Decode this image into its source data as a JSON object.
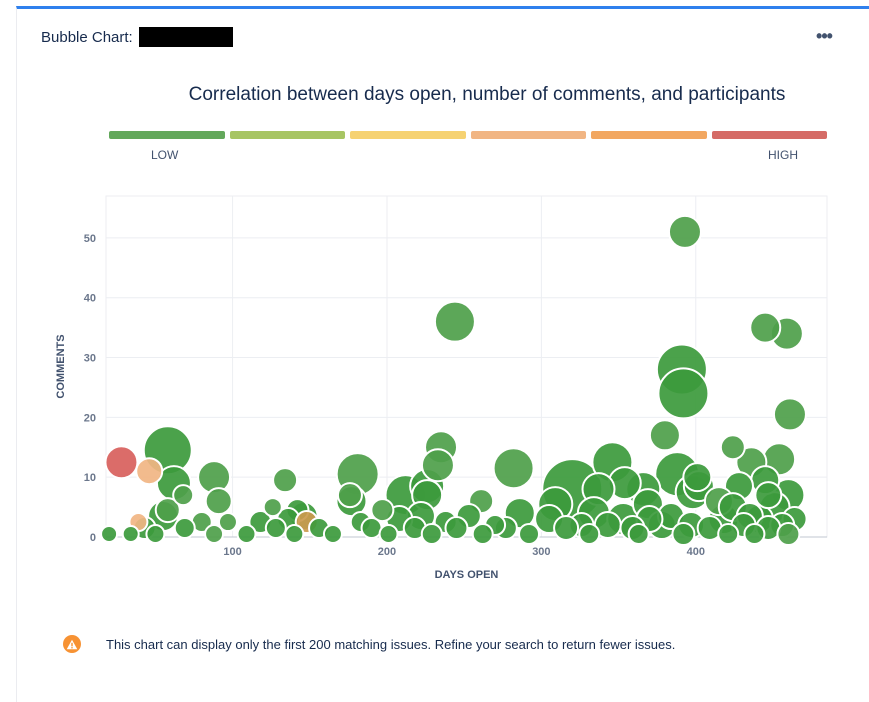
{
  "header": {
    "label": "Bubble Chart:"
  },
  "menu": {
    "icon": "more-horizontal-icon",
    "glyph": "•••"
  },
  "chart_data": {
    "type": "scatter",
    "title": "Correlation between days open, number of comments, and participants",
    "xlabel": "DAYS OPEN",
    "ylabel": "COMMENTS",
    "xlim": [
      18,
      485
    ],
    "ylim": [
      0,
      57
    ],
    "xticks": [
      100,
      200,
      300,
      400
    ],
    "yticks": [
      0,
      10,
      20,
      30,
      40,
      50
    ],
    "grid": true,
    "legend": {
      "placement": "top",
      "low_label": "LOW",
      "high_label": "HIGH",
      "colors": [
        "#63a85b",
        "#a7c563",
        "#f6d272",
        "#f1b583",
        "#f2a760",
        "#d56b66"
      ]
    },
    "size_encodes": "participants",
    "points": [
      {
        "x": 393,
        "y": 51,
        "s": 16,
        "c": "#4ea04a"
      },
      {
        "x": 244,
        "y": 36,
        "s": 20,
        "c": "#4ea04a"
      },
      {
        "x": 445,
        "y": 35,
        "s": 15,
        "c": "#4ea04a"
      },
      {
        "x": 459,
        "y": 34,
        "s": 16,
        "c": "#4ea04a"
      },
      {
        "x": 391,
        "y": 28,
        "s": 25,
        "c": "#3c9a3c"
      },
      {
        "x": 392,
        "y": 24,
        "s": 25,
        "c": "#3c9a3c"
      },
      {
        "x": 461,
        "y": 20.5,
        "s": 16,
        "c": "#4ea04a"
      },
      {
        "x": 380,
        "y": 17,
        "s": 15,
        "c": "#4ea04a"
      },
      {
        "x": 424,
        "y": 15,
        "s": 12,
        "c": "#4ea04a"
      },
      {
        "x": 235,
        "y": 15,
        "s": 16,
        "c": "#4ea04a"
      },
      {
        "x": 58,
        "y": 14.5,
        "s": 24,
        "c": "#3c9a3c"
      },
      {
        "x": 454,
        "y": 13,
        "s": 16,
        "c": "#4ea04a"
      },
      {
        "x": 28,
        "y": 12.5,
        "s": 16,
        "c": "#d8605c"
      },
      {
        "x": 346,
        "y": 12.5,
        "s": 20,
        "c": "#3c9a3c"
      },
      {
        "x": 233,
        "y": 12,
        "s": 16,
        "c": "#4ea04a"
      },
      {
        "x": 436,
        "y": 12.5,
        "s": 15,
        "c": "#4ea04a"
      },
      {
        "x": 282,
        "y": 11.5,
        "s": 20,
        "c": "#4ea04a"
      },
      {
        "x": 46,
        "y": 11,
        "s": 13,
        "c": "#f1b583"
      },
      {
        "x": 181,
        "y": 10.5,
        "s": 21,
        "c": "#4ea04a"
      },
      {
        "x": 388,
        "y": 10.5,
        "s": 22,
        "c": "#3c9a3c"
      },
      {
        "x": 401,
        "y": 10,
        "s": 14,
        "c": "#3c9a3c"
      },
      {
        "x": 88,
        "y": 10,
        "s": 16,
        "c": "#4ea04a"
      },
      {
        "x": 134,
        "y": 9.5,
        "s": 12,
        "c": "#4ea04a"
      },
      {
        "x": 445,
        "y": 9.5,
        "s": 14,
        "c": "#3c9a3c"
      },
      {
        "x": 62,
        "y": 9,
        "s": 17,
        "c": "#3c9a3c"
      },
      {
        "x": 354,
        "y": 9,
        "s": 16,
        "c": "#3c9a3c"
      },
      {
        "x": 402,
        "y": 8.5,
        "s": 15,
        "c": "#3c9a3c"
      },
      {
        "x": 428,
        "y": 8.5,
        "s": 14,
        "c": "#3c9a3c"
      },
      {
        "x": 226,
        "y": 8.5,
        "s": 17,
        "c": "#3c9a3c"
      },
      {
        "x": 320,
        "y": 8,
        "s": 30,
        "c": "#3c9a3c"
      },
      {
        "x": 337,
        "y": 8,
        "s": 16,
        "c": "#3c9a3c"
      },
      {
        "x": 366,
        "y": 8,
        "s": 17,
        "c": "#3c9a3c"
      },
      {
        "x": 398,
        "y": 7.5,
        "s": 17,
        "c": "#3c9a3c"
      },
      {
        "x": 460,
        "y": 7,
        "s": 16,
        "c": "#3c9a3c"
      },
      {
        "x": 447,
        "y": 7,
        "s": 13,
        "c": "#3c9a3c"
      },
      {
        "x": 212,
        "y": 7,
        "s": 20,
        "c": "#3c9a3c"
      },
      {
        "x": 226,
        "y": 7,
        "s": 15,
        "c": "#3c9a3c"
      },
      {
        "x": 176,
        "y": 7,
        "s": 12,
        "c": "#4ea04a"
      },
      {
        "x": 68,
        "y": 7,
        "s": 10,
        "c": "#4ea04a"
      },
      {
        "x": 261,
        "y": 6,
        "s": 12,
        "c": "#4ea04a"
      },
      {
        "x": 91,
        "y": 6,
        "s": 13,
        "c": "#4ea04a"
      },
      {
        "x": 415,
        "y": 6,
        "s": 14,
        "c": "#4ea04a"
      },
      {
        "x": 177,
        "y": 6,
        "s": 15,
        "c": "#3c9a3c"
      },
      {
        "x": 309,
        "y": 5.5,
        "s": 17,
        "c": "#3c9a3c"
      },
      {
        "x": 369,
        "y": 5.5,
        "s": 15,
        "c": "#3c9a3c"
      },
      {
        "x": 424,
        "y": 5,
        "s": 14,
        "c": "#3c9a3c"
      },
      {
        "x": 451,
        "y": 5,
        "s": 15,
        "c": "#3c9a3c"
      },
      {
        "x": 126,
        "y": 5,
        "s": 9,
        "c": "#4ea04a"
      },
      {
        "x": 58,
        "y": 4.5,
        "s": 12,
        "c": "#4ea04a"
      },
      {
        "x": 142,
        "y": 4.5,
        "s": 11,
        "c": "#3c9a3c"
      },
      {
        "x": 197,
        "y": 4.5,
        "s": 11,
        "c": "#4ea04a"
      },
      {
        "x": 286,
        "y": 4,
        "s": 15,
        "c": "#3c9a3c"
      },
      {
        "x": 334,
        "y": 4,
        "s": 16,
        "c": "#3c9a3c"
      },
      {
        "x": 435,
        "y": 3.5,
        "s": 13,
        "c": "#3c9a3c"
      },
      {
        "x": 55,
        "y": 3.5,
        "s": 15,
        "c": "#3c9a3c"
      },
      {
        "x": 146,
        "y": 3.5,
        "s": 14,
        "c": "#3c9a3c"
      },
      {
        "x": 222,
        "y": 3.5,
        "s": 14,
        "c": "#3c9a3c"
      },
      {
        "x": 253,
        "y": 3.5,
        "s": 12,
        "c": "#3c9a3c"
      },
      {
        "x": 384,
        "y": 3.5,
        "s": 13,
        "c": "#3c9a3c"
      },
      {
        "x": 136,
        "y": 3,
        "s": 11,
        "c": "#3c9a3c"
      },
      {
        "x": 208,
        "y": 3,
        "s": 13,
        "c": "#3c9a3c"
      },
      {
        "x": 305,
        "y": 3,
        "s": 14,
        "c": "#3c9a3c"
      },
      {
        "x": 353,
        "y": 3,
        "s": 16,
        "c": "#3c9a3c"
      },
      {
        "x": 370,
        "y": 3,
        "s": 13,
        "c": "#3c9a3c"
      },
      {
        "x": 418,
        "y": 3,
        "s": 15,
        "c": "#3c9a3c"
      },
      {
        "x": 441,
        "y": 3,
        "s": 14,
        "c": "#3c9a3c"
      },
      {
        "x": 464,
        "y": 3,
        "s": 12,
        "c": "#3c9a3c"
      },
      {
        "x": 148,
        "y": 2.5,
        "s": 11,
        "c": "#cb9a4e"
      },
      {
        "x": 80,
        "y": 2.5,
        "s": 10,
        "c": "#4ea04a"
      },
      {
        "x": 97,
        "y": 2.5,
        "s": 9,
        "c": "#4ea04a"
      },
      {
        "x": 39,
        "y": 2.5,
        "s": 9,
        "c": "#f1b583"
      },
      {
        "x": 118,
        "y": 2.5,
        "s": 11,
        "c": "#3c9a3c"
      },
      {
        "x": 183,
        "y": 2.5,
        "s": 10,
        "c": "#3c9a3c"
      },
      {
        "x": 238,
        "y": 2.5,
        "s": 11,
        "c": "#3c9a3c"
      },
      {
        "x": 270,
        "y": 2,
        "s": 10,
        "c": "#3c9a3c"
      },
      {
        "x": 326,
        "y": 2,
        "s": 12,
        "c": "#3c9a3c"
      },
      {
        "x": 343,
        "y": 2,
        "s": 13,
        "c": "#3c9a3c"
      },
      {
        "x": 378,
        "y": 2,
        "s": 14,
        "c": "#3c9a3c"
      },
      {
        "x": 397,
        "y": 2,
        "s": 13,
        "c": "#3c9a3c"
      },
      {
        "x": 431,
        "y": 2,
        "s": 12,
        "c": "#3c9a3c"
      },
      {
        "x": 456,
        "y": 2,
        "s": 12,
        "c": "#3c9a3c"
      },
      {
        "x": 43,
        "y": 1.5,
        "s": 11,
        "c": "#3c9a3c"
      },
      {
        "x": 69,
        "y": 1.5,
        "s": 10,
        "c": "#3c9a3c"
      },
      {
        "x": 128,
        "y": 1.5,
        "s": 10,
        "c": "#3c9a3c"
      },
      {
        "x": 156,
        "y": 1.5,
        "s": 10,
        "c": "#3c9a3c"
      },
      {
        "x": 190,
        "y": 1.5,
        "s": 10,
        "c": "#3c9a3c"
      },
      {
        "x": 218,
        "y": 1.5,
        "s": 11,
        "c": "#3c9a3c"
      },
      {
        "x": 245,
        "y": 1.5,
        "s": 11,
        "c": "#3c9a3c"
      },
      {
        "x": 277,
        "y": 1.5,
        "s": 11,
        "c": "#3c9a3c"
      },
      {
        "x": 316,
        "y": 1.5,
        "s": 12,
        "c": "#3c9a3c"
      },
      {
        "x": 359,
        "y": 1.5,
        "s": 12,
        "c": "#3c9a3c"
      },
      {
        "x": 409,
        "y": 1.5,
        "s": 12,
        "c": "#3c9a3c"
      },
      {
        "x": 447,
        "y": 1.5,
        "s": 12,
        "c": "#3c9a3c"
      },
      {
        "x": 20,
        "y": 0.5,
        "s": 8,
        "c": "#3c9a3c"
      },
      {
        "x": 34,
        "y": 0.5,
        "s": 8,
        "c": "#3c9a3c"
      },
      {
        "x": 50,
        "y": 0.5,
        "s": 9,
        "c": "#3c9a3c"
      },
      {
        "x": 88,
        "y": 0.5,
        "s": 9,
        "c": "#4ea04a"
      },
      {
        "x": 109,
        "y": 0.5,
        "s": 9,
        "c": "#3c9a3c"
      },
      {
        "x": 140,
        "y": 0.5,
        "s": 9,
        "c": "#3c9a3c"
      },
      {
        "x": 165,
        "y": 0.5,
        "s": 9,
        "c": "#3c9a3c"
      },
      {
        "x": 201,
        "y": 0.5,
        "s": 9,
        "c": "#3c9a3c"
      },
      {
        "x": 229,
        "y": 0.5,
        "s": 10,
        "c": "#3c9a3c"
      },
      {
        "x": 262,
        "y": 0.5,
        "s": 10,
        "c": "#3c9a3c"
      },
      {
        "x": 292,
        "y": 0.5,
        "s": 10,
        "c": "#3c9a3c"
      },
      {
        "x": 331,
        "y": 0.5,
        "s": 10,
        "c": "#3c9a3c"
      },
      {
        "x": 363,
        "y": 0.5,
        "s": 10,
        "c": "#3c9a3c"
      },
      {
        "x": 392,
        "y": 0.5,
        "s": 11,
        "c": "#3c9a3c"
      },
      {
        "x": 421,
        "y": 0.5,
        "s": 10,
        "c": "#3c9a3c"
      },
      {
        "x": 438,
        "y": 0.5,
        "s": 10,
        "c": "#3c9a3c"
      },
      {
        "x": 460,
        "y": 0.5,
        "s": 11,
        "c": "#4ea04a"
      }
    ]
  },
  "footer": {
    "icon": "warning-icon",
    "message": "This chart can display only the first 200 matching issues. Refine your search to return fewer issues."
  }
}
